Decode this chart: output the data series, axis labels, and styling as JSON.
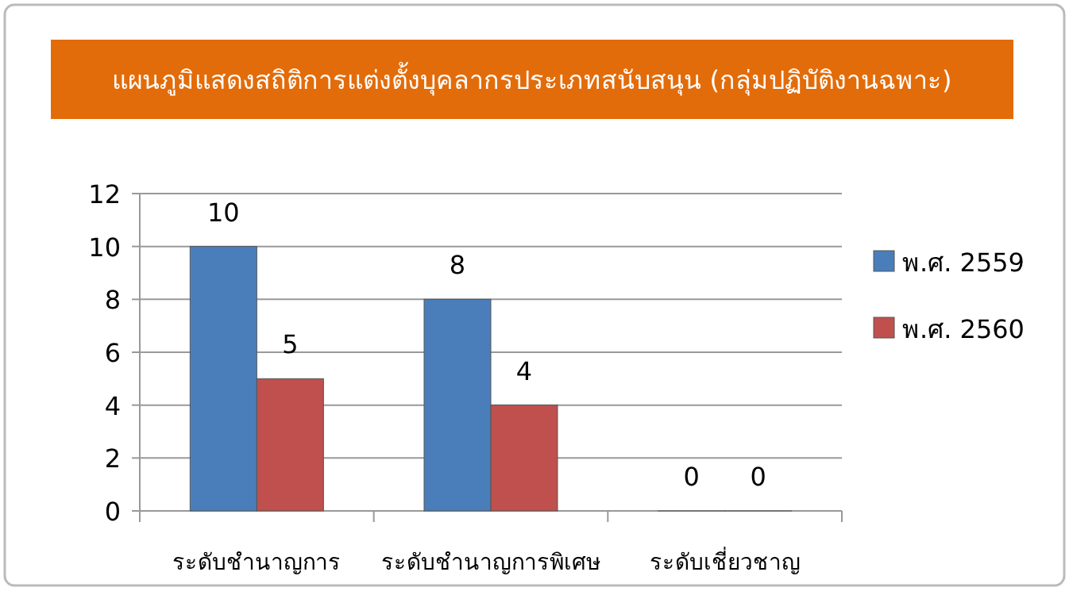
{
  "chart_data": {
    "type": "bar",
    "title": "แผนภูมิแสดงสถิติการแต่งตั้งบุคลากรประเภทสนับสนุน (กลุ่มปฏิบัติงานฉพาะ)",
    "categories": [
      "ระดับชำนาญการ",
      "ระดับชำนาญการพิเศษ",
      "ระดับเชี่ยวชาญ"
    ],
    "series": [
      {
        "name": "พ.ศ. 2559",
        "color": "#4a7ebb",
        "values": [
          10,
          8,
          0
        ]
      },
      {
        "name": "พ.ศ. 2560",
        "color": "#c0504d",
        "values": [
          5,
          4,
          0
        ]
      }
    ],
    "ylim": [
      0,
      12
    ],
    "yticks": [
      0,
      2,
      4,
      6,
      8,
      10,
      12
    ],
    "grid": "y",
    "legend": "right",
    "data_labels": true
  }
}
